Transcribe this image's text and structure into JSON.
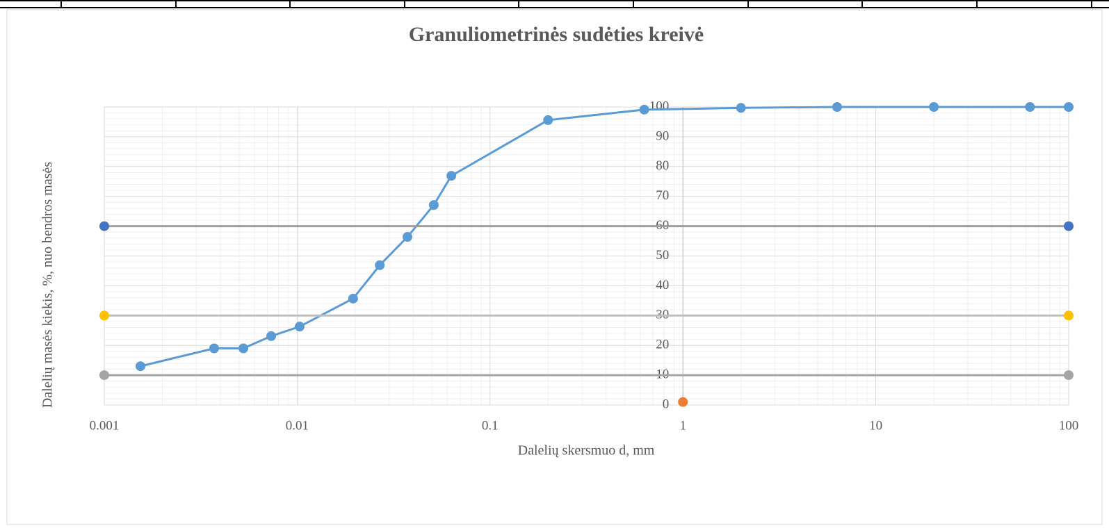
{
  "chart_data": {
    "type": "scatter",
    "title": "Granuliometrinės sudėties kreivė",
    "x_label": "Dalelių skersmuo d, mm",
    "y_label": "Dalelių masės kiekis, %, nuo bendros masės",
    "x_log": true,
    "grid": true,
    "minor_grid": true,
    "xlim": [
      0.001,
      100
    ],
    "xticks": [
      0.001,
      0.01,
      0.1,
      1,
      10,
      100
    ],
    "ylim": [
      0,
      100
    ],
    "yticks": [
      0,
      10,
      20,
      30,
      40,
      50,
      60,
      70,
      80,
      90,
      100
    ],
    "series": [
      {
        "color": "#5b9bd5",
        "line_color": "#5b9bd5",
        "x": [
          0.00154,
          0.00371,
          0.00526,
          0.00733,
          0.0103,
          0.0195,
          0.0268,
          0.0373,
          0.0511,
          0.063,
          0.2,
          0.63,
          2,
          6.3,
          20,
          63,
          100
        ],
        "values": [
          13,
          19,
          19,
          23.1,
          26.3,
          35.7,
          46.9,
          56.4,
          67.1,
          76.9,
          95.6,
          99.1,
          99.7,
          100,
          100,
          100,
          100
        ]
      },
      {
        "color": "#4472c4",
        "line_color": "#9e9e9e",
        "x": [
          0.001,
          100
        ],
        "values": [
          60,
          60
        ]
      },
      {
        "color": "#ffc000",
        "line_color": "#bfbfbf",
        "x": [
          0.001,
          100
        ],
        "values": [
          30,
          30
        ]
      },
      {
        "color": "#a5a5a5",
        "line_color": "#a5a5a5",
        "x": [
          0.001,
          100
        ],
        "values": [
          10,
          10
        ]
      },
      {
        "color": "#ed7d31",
        "x": [
          1
        ],
        "values": [
          1
        ]
      }
    ]
  }
}
